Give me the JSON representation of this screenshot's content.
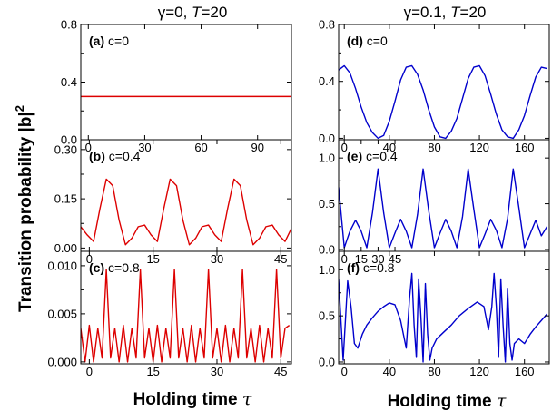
{
  "figure": {
    "ylabel": "Transition probability |b|",
    "ylabel_sup": "2",
    "xlabel": "Holding time",
    "xlabel_symbol": "τ",
    "colors": {
      "left": "#dd0000",
      "right": "#0000cc"
    }
  },
  "columns": [
    {
      "title_prefix": "γ=0, ",
      "title_T": "T",
      "title_suffix": "=20"
    },
    {
      "title_prefix": "γ=0.1, ",
      "title_T": "T",
      "title_suffix": "=20"
    }
  ],
  "chart_data": [
    {
      "panel": "(a)",
      "label": "c=0",
      "type": "line",
      "color": "#dd0000",
      "xlim": [
        -4,
        108
      ],
      "ylim": [
        0,
        0.8
      ],
      "xticks": [
        0,
        30,
        60,
        90
      ],
      "yticks": [
        0.0,
        0.4,
        0.8
      ],
      "xtick_labels": [
        "0",
        "30",
        "60",
        "90"
      ],
      "ytick_labels": [
        "0.0",
        "0.4",
        "0.8"
      ],
      "series": [
        {
          "x": [
            -4,
            108
          ],
          "y": [
            0.3,
            0.3
          ]
        }
      ]
    },
    {
      "panel": "(b)",
      "label": "c=0.4",
      "type": "line",
      "color": "#dd0000",
      "xlim": [
        -2,
        47.5
      ],
      "ylim": [
        -0.01,
        0.33
      ],
      "xticks": [
        0,
        15,
        30,
        45
      ],
      "yticks": [
        0.0,
        0.15,
        0.3
      ],
      "xtick_labels": [
        "0",
        "15",
        "30",
        "45"
      ],
      "ytick_labels": [
        "0.00",
        "0.15",
        "0.30"
      ],
      "series": [
        {
          "x": [
            -2,
            -0.5,
            1,
            2.5,
            4,
            5.5,
            7,
            8.5,
            10,
            11.5,
            13,
            14.5,
            16,
            17.5,
            19,
            20.5,
            22,
            23.5,
            25,
            26.5,
            28,
            29.5,
            31,
            32.5,
            34,
            35.5,
            37,
            38.5,
            40,
            41.5,
            43,
            44.5,
            46,
            47.5
          ],
          "y": [
            0.065,
            0.04,
            0.02,
            0.12,
            0.21,
            0.19,
            0.085,
            0.01,
            0.03,
            0.065,
            0.07,
            0.04,
            0.02,
            0.12,
            0.21,
            0.19,
            0.085,
            0.01,
            0.03,
            0.065,
            0.07,
            0.04,
            0.02,
            0.12,
            0.21,
            0.19,
            0.085,
            0.01,
            0.03,
            0.065,
            0.07,
            0.04,
            0.02,
            0.06
          ]
        }
      ]
    },
    {
      "panel": "(c)",
      "label": "c=0.8",
      "type": "line",
      "color": "#dd0000",
      "xlim": [
        -2,
        47.5
      ],
      "ylim": [
        -0.0002,
        0.0115
      ],
      "xticks": [
        0,
        15,
        30,
        45
      ],
      "yticks": [
        0.0,
        0.005,
        0.01
      ],
      "xtick_labels": [
        "0",
        "15",
        "30",
        "45"
      ],
      "ytick_labels": [
        "0.000",
        "0.005",
        "0.010"
      ],
      "series": [
        {
          "x": [
            -2,
            -1,
            0,
            1,
            2,
            3,
            4,
            5,
            6,
            7,
            8,
            9,
            10,
            11,
            12,
            13,
            14,
            15,
            16,
            17,
            18,
            19,
            20,
            21,
            22,
            23,
            24,
            25,
            26,
            27,
            28,
            29,
            30,
            31,
            32,
            33,
            34,
            35,
            36,
            37,
            38,
            39,
            40,
            41,
            42,
            43,
            44,
            45,
            46,
            47
          ],
          "y": [
            0.0035,
            0.0,
            0.0038,
            0.0,
            0.0035,
            0.0004,
            0.0096,
            0.0004,
            0.0035,
            0.0,
            0.0038,
            0.0,
            0.0035,
            0.0004,
            0.0096,
            0.0004,
            0.0035,
            0.0,
            0.0038,
            0.0,
            0.0035,
            0.0004,
            0.0096,
            0.0004,
            0.0035,
            0.0,
            0.0038,
            0.0,
            0.0035,
            0.0004,
            0.0096,
            0.0004,
            0.0035,
            0.0,
            0.0038,
            0.0,
            0.0035,
            0.0004,
            0.0096,
            0.0004,
            0.0035,
            0.0,
            0.0038,
            0.0,
            0.0035,
            0.0004,
            0.0096,
            0.0004,
            0.0035,
            0.0038
          ]
        }
      ]
    },
    {
      "panel": "(d)",
      "label": "c=0",
      "type": "line",
      "color": "#0000cc",
      "xlim": [
        -5,
        182
      ],
      "ylim": [
        -0.01,
        0.8
      ],
      "xticks": [
        0,
        40,
        80,
        120,
        160
      ],
      "yticks": [
        0.0,
        0.4,
        0.8
      ],
      "xtick_labels": [
        "0",
        "40",
        "80",
        "120",
        "160"
      ],
      "ytick_labels": [
        "0.0",
        "0.4",
        "0.8"
      ],
      "series": [
        {
          "x": [
            -5,
            0,
            5,
            10,
            15,
            20,
            25,
            30,
            35,
            40,
            45,
            50,
            55,
            60,
            65,
            70,
            75,
            80,
            85,
            90,
            95,
            100,
            105,
            110,
            115,
            120,
            125,
            130,
            135,
            140,
            145,
            150,
            155,
            160,
            165,
            170,
            175,
            180
          ],
          "y": [
            0.48,
            0.51,
            0.46,
            0.35,
            0.22,
            0.11,
            0.04,
            0.0,
            0.02,
            0.12,
            0.26,
            0.41,
            0.5,
            0.51,
            0.45,
            0.34,
            0.2,
            0.08,
            0.01,
            0.0,
            0.05,
            0.14,
            0.28,
            0.42,
            0.5,
            0.51,
            0.44,
            0.31,
            0.17,
            0.06,
            0.01,
            0.0,
            0.06,
            0.16,
            0.3,
            0.43,
            0.5,
            0.49
          ]
        }
      ]
    },
    {
      "panel": "(e)",
      "label": "c=0.4",
      "type": "line",
      "color": "#0000cc",
      "xlim": [
        -5,
        182
      ],
      "ylim": [
        -0.02,
        1.2
      ],
      "xticks": [
        0,
        15,
        30,
        45
      ],
      "yticks": [
        0.0,
        0.5,
        1.0
      ],
      "xtick_labels": [
        "0",
        "15",
        "30",
        "45"
      ],
      "ytick_labels": [
        "0.0",
        "0.5",
        "1.0"
      ],
      "series": [
        {
          "x": [
            -5,
            0,
            5,
            10,
            15,
            20,
            25,
            30,
            35,
            40,
            45,
            50,
            55,
            60,
            65,
            70,
            75,
            80,
            85,
            90,
            95,
            100,
            105,
            110,
            115,
            120,
            125,
            130,
            135,
            140,
            145,
            150,
            155,
            160,
            165,
            170,
            175,
            180
          ],
          "y": [
            0.68,
            0.02,
            0.2,
            0.32,
            0.2,
            0.02,
            0.4,
            0.88,
            0.4,
            0.02,
            0.18,
            0.33,
            0.2,
            0.02,
            0.38,
            0.88,
            0.42,
            0.02,
            0.18,
            0.33,
            0.2,
            0.02,
            0.36,
            0.88,
            0.44,
            0.02,
            0.17,
            0.33,
            0.21,
            0.02,
            0.34,
            0.88,
            0.46,
            0.02,
            0.17,
            0.32,
            0.15,
            0.25
          ]
        }
      ]
    },
    {
      "panel": "(f)",
      "label": "c=0.8",
      "type": "line",
      "color": "#0000cc",
      "xlim": [
        -5,
        182
      ],
      "ylim": [
        -0.02,
        1.2
      ],
      "xticks": [
        0,
        40,
        80,
        120,
        160
      ],
      "yticks": [
        0.0,
        0.5,
        1.0
      ],
      "xtick_labels": [
        "0",
        "40",
        "80",
        "120",
        "160"
      ],
      "ytick_labels": [
        "0.0",
        "0.5",
        "1.0"
      ],
      "series": [
        {
          "x": [
            -5,
            -1,
            3,
            6,
            9,
            12,
            16,
            20,
            25,
            30,
            35,
            40,
            45,
            50,
            55,
            58,
            60,
            62,
            64,
            66,
            68,
            70,
            72,
            74,
            76,
            78,
            82,
            88,
            95,
            102,
            110,
            118,
            124,
            128,
            131,
            133,
            135,
            137,
            139,
            141,
            143,
            145,
            147,
            149,
            151,
            155,
            160,
            165,
            170,
            175,
            180
          ],
          "y": [
            0.9,
            0.02,
            0.88,
            0.6,
            0.2,
            0.15,
            0.3,
            0.4,
            0.48,
            0.55,
            0.6,
            0.64,
            0.62,
            0.45,
            0.15,
            0.7,
            0.96,
            0.4,
            0.05,
            0.9,
            0.5,
            0.0,
            0.85,
            0.3,
            0.02,
            0.15,
            0.25,
            0.32,
            0.4,
            0.5,
            0.58,
            0.65,
            0.6,
            0.35,
            0.6,
            0.96,
            0.6,
            0.05,
            0.9,
            0.4,
            0.0,
            0.8,
            0.2,
            0.02,
            0.2,
            0.25,
            0.2,
            0.3,
            0.38,
            0.45,
            0.52
          ]
        }
      ]
    }
  ]
}
